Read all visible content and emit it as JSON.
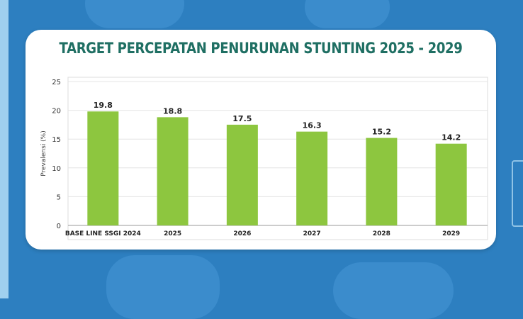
{
  "chart_data": {
    "type": "bar",
    "title": "TARGET PERCEPATAN PENURUNAN STUNTING 2025 - 2029",
    "xlabel": "",
    "ylabel": "Prevalensi (%)",
    "categories": [
      "BASE LINE SSGI 2024",
      "2025",
      "2026",
      "2027",
      "2028",
      "2029"
    ],
    "values": [
      19.8,
      18.8,
      17.5,
      16.3,
      15.2,
      14.2
    ],
    "value_labels": [
      "19.8",
      "18.8",
      "17.5",
      "16.3",
      "15.2",
      "14.2"
    ],
    "ylim": [
      0,
      25
    ],
    "yticks": [
      "0",
      "5",
      "10",
      "15",
      "20",
      "25"
    ],
    "grid": true,
    "bar_color": "#8dc63f",
    "title_color": "#1f6f63"
  }
}
